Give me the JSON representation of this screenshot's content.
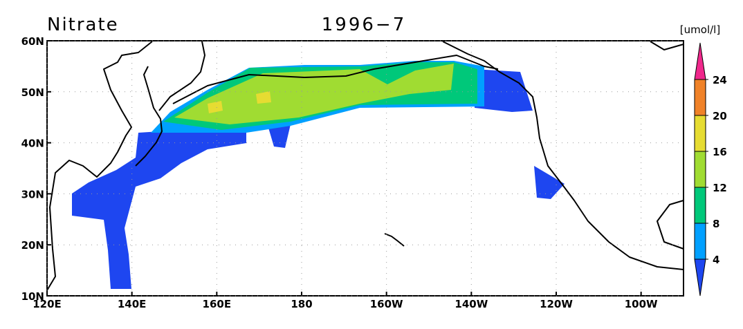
{
  "title": "Nitrate",
  "subtitle": "1996−7",
  "lon_range": [
    120,
    270
  ],
  "lat_range": [
    10,
    60
  ],
  "lon_ticks": [
    {
      "value": 120,
      "label": "120E"
    },
    {
      "value": 140,
      "label": "140E"
    },
    {
      "value": 160,
      "label": "160E"
    },
    {
      "value": 180,
      "label": "180"
    },
    {
      "value": 200,
      "label": "160W"
    },
    {
      "value": 220,
      "label": "140W"
    },
    {
      "value": 240,
      "label": "120W"
    },
    {
      "value": 260,
      "label": "100W"
    }
  ],
  "lat_ticks": [
    {
      "value": 10,
      "label": "10N"
    },
    {
      "value": 20,
      "label": "20N"
    },
    {
      "value": 30,
      "label": "30N"
    },
    {
      "value": 40,
      "label": "40N"
    },
    {
      "value": 50,
      "label": "50N"
    },
    {
      "value": 60,
      "label": "60N"
    }
  ],
  "colorbar": {
    "unit": "[umol/l]",
    "levels": [
      4,
      8,
      12,
      16,
      20,
      24
    ],
    "colors": [
      "#1e46f0",
      "#00a0ff",
      "#00c87a",
      "#a0dc32",
      "#e6dc32",
      "#f08228",
      "#f0288c"
    ]
  }
}
